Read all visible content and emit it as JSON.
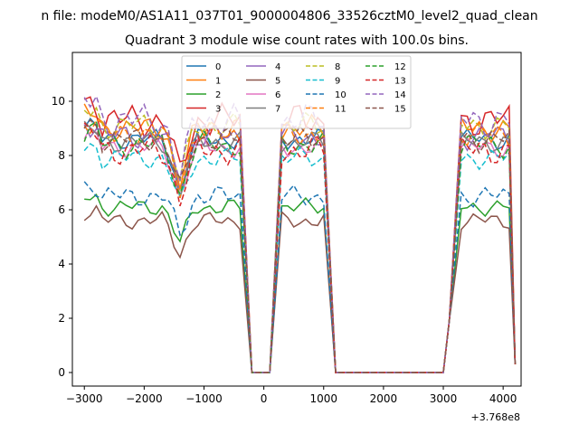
{
  "chart_data": {
    "type": "line",
    "suptitle": "n file: modeM0/AS1A11_037T01_9000004806_33526cztM0_level2_quad_clean",
    "title": "Quadrant 3 module wise count rates with 100.0s bins.",
    "xlabel": "",
    "ylabel": "",
    "offset_label": "+3.768e8",
    "xlim": [
      -3200,
      4300
    ],
    "ylim": [
      -0.5,
      11.8
    ],
    "x_ticks": [
      -3000,
      -2000,
      -1000,
      0,
      1000,
      2000,
      3000,
      4000
    ],
    "x_tick_labels": [
      "−3000",
      "−2000",
      "−1000",
      "0",
      "1000",
      "2000",
      "3000",
      "4000"
    ],
    "y_ticks": [
      0,
      2,
      4,
      6,
      8,
      10
    ],
    "y_tick_labels": [
      "0",
      "2",
      "4",
      "6",
      "8",
      "10"
    ],
    "legend": {
      "location": "upper center",
      "ncol": 4
    },
    "series": [
      {
        "name": "0",
        "color": "#1f77b4",
        "style": "solid",
        "base": 8.6,
        "amp": 0.5,
        "phase": 0.0
      },
      {
        "name": "1",
        "color": "#ff7f0e",
        "style": "solid",
        "base": 9.0,
        "amp": 0.6,
        "phase": 0.7
      },
      {
        "name": "2",
        "color": "#2ca02c",
        "style": "solid",
        "base": 6.1,
        "amp": 0.4,
        "phase": 1.3
      },
      {
        "name": "3",
        "color": "#d62728",
        "style": "solid",
        "base": 9.3,
        "amp": 0.8,
        "phase": 2.1
      },
      {
        "name": "4",
        "color": "#9467bd",
        "style": "solid",
        "base": 8.7,
        "amp": 0.6,
        "phase": 2.9
      },
      {
        "name": "5",
        "color": "#8c564b",
        "style": "solid",
        "base": 5.6,
        "amp": 0.4,
        "phase": 3.4
      },
      {
        "name": "6",
        "color": "#e377c2",
        "style": "solid",
        "base": 8.3,
        "amp": 0.5,
        "phase": 4.0
      },
      {
        "name": "7",
        "color": "#7f7f7f",
        "style": "solid",
        "base": 8.5,
        "amp": 0.5,
        "phase": 4.6
      },
      {
        "name": "8",
        "color": "#bcbd22",
        "style": "dashed",
        "base": 9.1,
        "amp": 0.6,
        "phase": 5.2
      },
      {
        "name": "9",
        "color": "#17becf",
        "style": "dashed",
        "base": 7.9,
        "amp": 0.5,
        "phase": 5.8
      },
      {
        "name": "10",
        "color": "#1f77b4",
        "style": "dashed",
        "base": 6.5,
        "amp": 0.5,
        "phase": 0.4
      },
      {
        "name": "11",
        "color": "#ff7f0e",
        "style": "dashed",
        "base": 8.8,
        "amp": 0.6,
        "phase": 1.0
      },
      {
        "name": "12",
        "color": "#2ca02c",
        "style": "dashed",
        "base": 8.4,
        "amp": 0.6,
        "phase": 1.7
      },
      {
        "name": "13",
        "color": "#d62728",
        "style": "dashed",
        "base": 8.2,
        "amp": 0.7,
        "phase": 2.5
      },
      {
        "name": "14",
        "color": "#9467bd",
        "style": "dashed",
        "base": 9.3,
        "amp": 0.8,
        "phase": 3.1
      },
      {
        "name": "15",
        "color": "#8c564b",
        "style": "dashed",
        "base": 8.6,
        "amp": 0.6,
        "phase": 3.8
      }
    ],
    "shape": {
      "segments": [
        {
          "x_start": -3000,
          "x_end": -400,
          "bins": 27,
          "dip_at": -1400,
          "dip_depth": 2.0
        },
        {
          "x_start": 300,
          "x_end": 1000,
          "bins": 8,
          "dip_at": null,
          "dip_depth": 0
        },
        {
          "x_start": 3300,
          "x_end": 4100,
          "bins": 9,
          "dip_at": null,
          "dip_depth": 0
        }
      ],
      "zero_runs": [
        [
          -200,
          100
        ],
        [
          1200,
          3000
        ]
      ],
      "ramps": [
        [
          -400,
          -200
        ],
        [
          100,
          300
        ],
        [
          1000,
          1200
        ],
        [
          3000,
          3100
        ],
        [
          3100,
          3300
        ],
        [
          4100,
          4200
        ]
      ],
      "final_value": 0.3
    }
  }
}
